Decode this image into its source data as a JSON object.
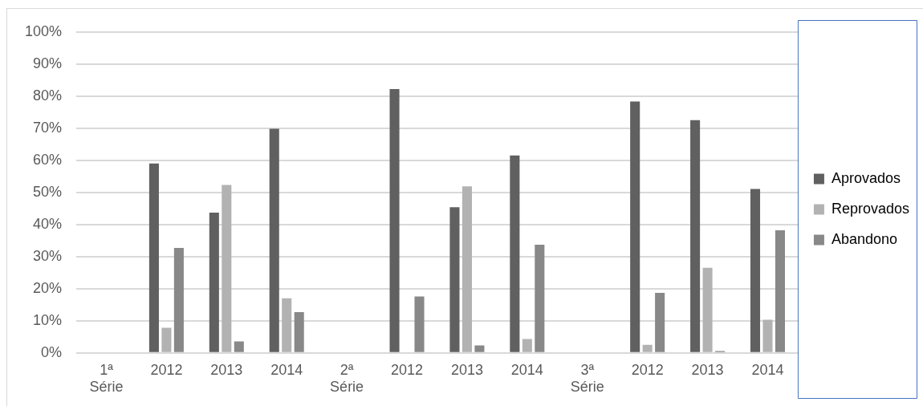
{
  "chart_data": {
    "type": "bar",
    "categories": [
      "1ª Série",
      "2012",
      "2013",
      "2014",
      "2ª Série",
      "2012",
      "2013",
      "2014",
      "3ª Série",
      "2012",
      "2013",
      "2014"
    ],
    "series": [
      {
        "name": "Aprovados",
        "color": "#606060",
        "values": [
          null,
          59.0,
          43.7,
          69.8,
          null,
          82.2,
          45.4,
          61.5,
          null,
          78.3,
          72.5,
          51.1
        ]
      },
      {
        "name": "Reprovados",
        "color": "#b2b2b2",
        "values": [
          null,
          7.8,
          52.3,
          17.0,
          null,
          null,
          51.9,
          4.3,
          null,
          2.5,
          26.5,
          10.3
        ]
      },
      {
        "name": "Abandono",
        "color": "#888888",
        "values": [
          null,
          32.7,
          3.6,
          12.7,
          null,
          17.6,
          2.3,
          33.7,
          null,
          18.7,
          0.6,
          38.2
        ]
      }
    ],
    "ylim": [
      0,
      100
    ],
    "yticks": [
      {
        "value": 0,
        "label": "0%"
      },
      {
        "value": 10,
        "label": "10%"
      },
      {
        "value": 20,
        "label": "20%"
      },
      {
        "value": 30,
        "label": "30%"
      },
      {
        "value": 40,
        "label": "40%"
      },
      {
        "value": 50,
        "label": "50%"
      },
      {
        "value": 60,
        "label": "60%"
      },
      {
        "value": 70,
        "label": "70%"
      },
      {
        "value": 80,
        "label": "80%"
      },
      {
        "value": 90,
        "label": "90%"
      },
      {
        "value": 100,
        "label": "100%"
      }
    ],
    "grid": "y",
    "legend": "right"
  }
}
